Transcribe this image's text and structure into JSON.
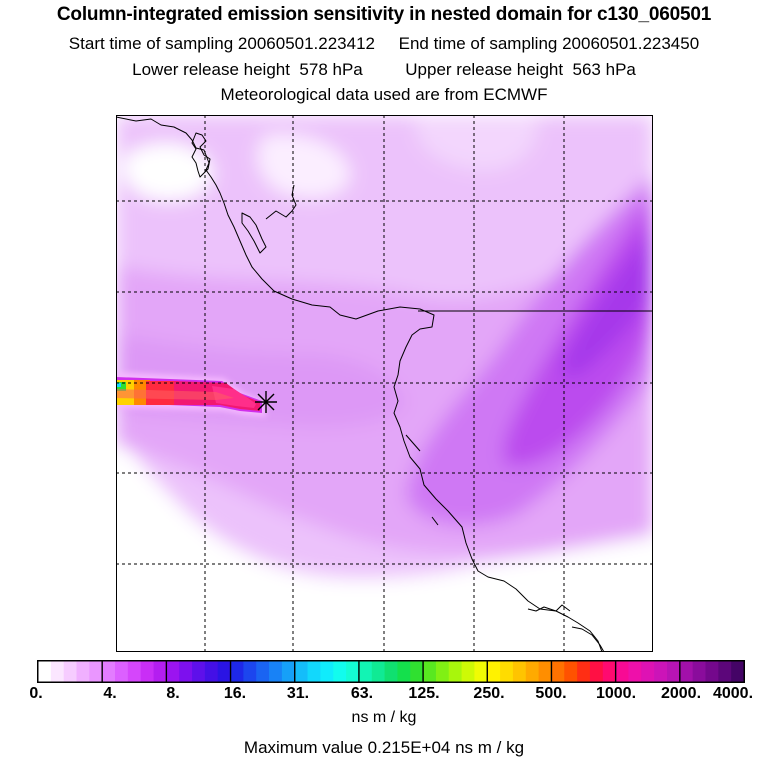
{
  "header": {
    "title": "Column-integrated emission sensitivity in nested domain for c130_060501",
    "line1": "Start time of sampling 20060501.223412     End time of sampling 20060501.223450",
    "line2": "Lower release height  578 hPa         Upper release height  563 hPa",
    "line3": "Meteorological data used are from ECMWF"
  },
  "colorbar": {
    "ticks": [
      "0.",
      "4.",
      "8.",
      "16.",
      "31.",
      "63.",
      "125.",
      "250.",
      "500.",
      "1000.",
      "2000.",
      "4000."
    ],
    "colors": [
      "#ffffff",
      "#fbe6ff",
      "#f6ccff",
      "#f0b0ff",
      "#ea96ff",
      "#e37cff",
      "#dc60ff",
      "#d546fb",
      "#c92ef6",
      "#b41ef0",
      "#9b14f0",
      "#7d10ee",
      "#5e10ea",
      "#4410e6",
      "#2a14e4",
      "#1e28e8",
      "#1c46ee",
      "#1a64f2",
      "#1882f6",
      "#16a0f8",
      "#14bdfa",
      "#12d8fc",
      "#10ecfc",
      "#12fcee",
      "#14fcd4",
      "#12f4b4",
      "#10ea94",
      "#10e070",
      "#14e04c",
      "#30e030",
      "#58e820",
      "#80f014",
      "#a8f60c",
      "#cefa06",
      "#f0fc04",
      "#fff200",
      "#ffdc00",
      "#ffc400",
      "#ffaa00",
      "#ff8e00",
      "#ff7200",
      "#ff5200",
      "#ff2e14",
      "#ff1044",
      "#ff0a70",
      "#f80a94",
      "#ee10aa",
      "#de12b4",
      "#cc14b8",
      "#b814b4",
      "#a210aa",
      "#8a0c9c",
      "#74088c",
      "#5c067a",
      "#440466"
    ],
    "units": "ns m / kg",
    "max_label": "Maximum value  0.215E+04 ns m / kg"
  }
}
